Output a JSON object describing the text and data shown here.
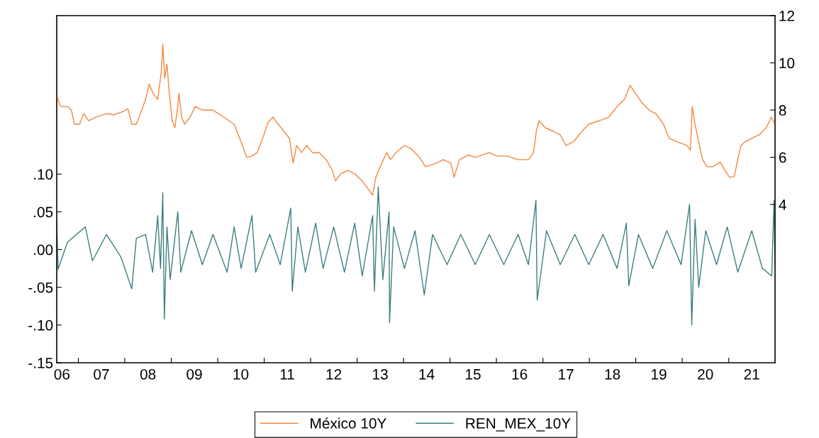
{
  "chart_data": {
    "type": "line",
    "legend": "bottom",
    "grid": false,
    "xlim": [
      "2006-07-15",
      "2021-12-31"
    ],
    "xticks": [
      {
        "value": "2006-08-25",
        "label": "06"
      },
      {
        "value": "2007-01-01",
        "label": null
      },
      {
        "value": "2007-07-01",
        "label": "07"
      },
      {
        "value": "2008-01-01",
        "label": null
      },
      {
        "value": "2008-07-01",
        "label": "08"
      },
      {
        "value": "2009-01-01",
        "label": null
      },
      {
        "value": "2009-07-01",
        "label": "09"
      },
      {
        "value": "2010-01-01",
        "label": null
      },
      {
        "value": "2010-07-01",
        "label": "10"
      },
      {
        "value": "2011-01-01",
        "label": null
      },
      {
        "value": "2011-07-01",
        "label": "11"
      },
      {
        "value": "2012-01-01",
        "label": null
      },
      {
        "value": "2012-07-01",
        "label": "12"
      },
      {
        "value": "2013-01-01",
        "label": null
      },
      {
        "value": "2013-07-01",
        "label": "13"
      },
      {
        "value": "2014-01-01",
        "label": null
      },
      {
        "value": "2014-07-01",
        "label": "14"
      },
      {
        "value": "2015-01-01",
        "label": null
      },
      {
        "value": "2015-07-01",
        "label": "15"
      },
      {
        "value": "2016-01-01",
        "label": null
      },
      {
        "value": "2016-07-01",
        "label": "16"
      },
      {
        "value": "2017-01-01",
        "label": null
      },
      {
        "value": "2017-07-01",
        "label": "17"
      },
      {
        "value": "2018-01-01",
        "label": null
      },
      {
        "value": "2018-07-01",
        "label": "18"
      },
      {
        "value": "2019-01-01",
        "label": null
      },
      {
        "value": "2019-07-01",
        "label": "19"
      },
      {
        "value": "2020-01-01",
        "label": null
      },
      {
        "value": "2020-07-01",
        "label": "20"
      },
      {
        "value": "2021-01-01",
        "label": null
      },
      {
        "value": "2021-07-01",
        "label": "21"
      }
    ],
    "ylim": [
      -0.15,
      0.31
    ],
    "yticks": [
      {
        "value": -0.15,
        "label": "-.15"
      },
      {
        "value": -0.1,
        "label": "-.10"
      },
      {
        "value": -0.05,
        "label": "-.05"
      },
      {
        "value": 0,
        "label": ".00"
      },
      {
        "value": 0.05,
        "label": ".05"
      },
      {
        "value": 0.1,
        "label": ".10"
      }
    ],
    "y2lim": [
      -2.7,
      12
    ],
    "y2ticks": [
      4,
      6,
      8,
      10,
      12
    ],
    "series": [
      {
        "name": "México 10Y",
        "color": "#f5873d",
        "axis": "y2",
        "x": [
          "2006-07-15",
          "2006-08-14",
          "2006-10-08",
          "2006-11-07",
          "2006-12-02",
          "2007-01-11",
          "2007-02-14",
          "2007-03-23",
          "2007-05-17",
          "2007-08-10",
          "2007-10-04",
          "2007-12-02",
          "2008-01-26",
          "2008-02-25",
          "2008-04-01",
          "2008-05-03",
          "2008-06-13",
          "2008-07-11",
          "2008-08-07",
          "2008-09-16",
          "2008-10-15",
          "2008-10-26",
          "2008-11-10",
          "2008-11-28",
          "2008-12-13",
          "2009-01-08",
          "2009-01-29",
          "2009-02-21",
          "2009-03-02",
          "2009-03-23",
          "2009-04-15",
          "2009-05-28",
          "2009-07-08",
          "2009-09-02",
          "2009-11-25",
          "2010-02-17",
          "2010-05-10",
          "2010-07-04",
          "2010-08-17",
          "2010-09-27",
          "2010-11-07",
          "2010-12-20",
          "2011-02-03",
          "2011-03-13",
          "2011-04-22",
          "2011-06-05",
          "2011-07-19",
          "2011-08-17",
          "2011-09-13",
          "2011-10-22",
          "2011-12-02",
          "2012-01-15",
          "2012-03-09",
          "2012-05-03",
          "2012-06-20",
          "2012-07-15",
          "2012-08-25",
          "2012-10-19",
          "2012-12-13",
          "2013-02-10",
          "2013-03-23",
          "2013-05-03",
          "2013-05-28",
          "2013-07-01",
          "2013-08-21",
          "2013-09-20",
          "2013-11-03",
          "2014-01-08",
          "2014-03-05",
          "2014-04-29",
          "2014-06-23",
          "2014-09-16",
          "2014-11-10",
          "2015-01-08",
          "2015-02-03",
          "2015-03-16",
          "2015-05-25",
          "2015-07-19",
          "2015-11-07",
          "2016-01-04",
          "2016-03-27",
          "2016-06-20",
          "2016-09-09",
          "2016-10-19",
          "2016-11-10",
          "2016-12-02",
          "2017-01-19",
          "2017-03-23",
          "2017-05-17",
          "2017-07-01",
          "2017-08-28",
          "2017-11-03",
          "2017-12-27",
          "2018-03-20",
          "2018-06-02",
          "2018-08-07",
          "2018-10-04",
          "2018-11-17",
          "2018-12-23",
          "2019-02-21",
          "2019-04-15",
          "2019-06-09",
          "2019-08-07",
          "2019-09-20",
          "2019-11-25",
          "2020-02-07",
          "2020-03-05",
          "2020-03-20",
          "2020-04-11",
          "2020-05-10",
          "2020-06-09",
          "2020-07-15",
          "2020-08-28",
          "2020-10-26",
          "2020-12-02",
          "2021-01-08",
          "2021-02-14",
          "2021-03-13",
          "2021-04-08",
          "2021-05-07",
          "2021-07-01",
          "2021-08-28",
          "2021-10-22",
          "2021-12-02",
          "2021-12-31"
        ],
        "values": [
          8.6,
          8.15,
          8.15,
          8.0,
          7.4,
          7.4,
          7.85,
          7.55,
          7.7,
          7.85,
          7.8,
          7.9,
          8.05,
          7.4,
          7.4,
          7.85,
          8.45,
          9.1,
          8.75,
          8.45,
          9.65,
          10.8,
          9.35,
          9.95,
          8.9,
          7.55,
          7.25,
          8.15,
          8.7,
          7.7,
          7.4,
          7.7,
          8.15,
          8.0,
          8.0,
          7.7,
          7.4,
          6.65,
          6.0,
          6.05,
          6.2,
          6.8,
          7.5,
          7.7,
          7.4,
          7.1,
          6.8,
          5.75,
          6.5,
          6.2,
          6.5,
          6.2,
          6.2,
          5.9,
          5.45,
          5.0,
          5.3,
          5.45,
          5.3,
          5.0,
          4.7,
          4.4,
          5.15,
          5.6,
          6.2,
          5.9,
          6.2,
          6.5,
          6.35,
          6.05,
          5.6,
          5.75,
          5.9,
          5.75,
          5.15,
          5.9,
          6.1,
          6.0,
          6.2,
          6.05,
          6.05,
          5.9,
          5.9,
          6.2,
          7.1,
          7.55,
          7.25,
          7.1,
          6.95,
          6.5,
          6.65,
          7.1,
          7.4,
          7.55,
          7.7,
          8.15,
          8.45,
          9.05,
          8.75,
          8.3,
          8.0,
          7.85,
          7.4,
          6.8,
          6.65,
          6.5,
          6.3,
          8.15,
          7.4,
          6.65,
          5.9,
          5.6,
          5.6,
          5.8,
          5.45,
          5.15,
          5.2,
          5.9,
          6.5,
          6.65,
          6.8,
          6.95,
          7.25,
          7.7,
          7.4
        ]
      },
      {
        "name": "REN_MEX_10Y",
        "color": "#3c7f7e",
        "axis": "y",
        "x": [
          "2006-07-15",
          "2006-07-26",
          "2006-10-08",
          "2007-02-25",
          "2007-04-22",
          "2007-08-10",
          "2007-12-02",
          "2008-02-25",
          "2008-04-01",
          "2008-06-13",
          "2008-08-07",
          "2008-09-16",
          "2008-10-08",
          "2008-10-26",
          "2008-11-07",
          "2008-11-28",
          "2008-12-23",
          "2009-02-21",
          "2009-03-16",
          "2009-06-09",
          "2009-09-02",
          "2009-11-25",
          "2010-03-16",
          "2010-05-10",
          "2010-07-04",
          "2010-09-27",
          "2010-10-26",
          "2011-02-14",
          "2011-05-07",
          "2011-07-29",
          "2011-08-10",
          "2011-09-23",
          "2011-11-21",
          "2012-02-10",
          "2012-04-08",
          "2012-07-01",
          "2012-09-23",
          "2012-12-13",
          "2013-02-10",
          "2013-05-03",
          "2013-05-17",
          "2013-06-16",
          "2013-07-22",
          "2013-09-09",
          "2013-09-13",
          "2013-10-15",
          "2014-01-08",
          "2014-04-01",
          "2014-06-13",
          "2014-08-17",
          "2014-12-09",
          "2015-03-27",
          "2015-07-19",
          "2015-11-07",
          "2016-02-28",
          "2016-06-20",
          "2016-09-09",
          "2016-11-07",
          "2016-11-17",
          "2017-01-29",
          "2017-05-17",
          "2017-09-09",
          "2017-12-27",
          "2018-04-19",
          "2018-08-07",
          "2018-10-19",
          "2018-11-07",
          "2019-01-22",
          "2019-05-14",
          "2019-09-02",
          "2019-12-23",
          "2020-02-28",
          "2020-03-16",
          "2020-04-11",
          "2020-05-10",
          "2020-07-04",
          "2020-09-27",
          "2020-12-20",
          "2021-03-13",
          "2021-07-01",
          "2021-09-23",
          "2021-12-05",
          "2021-12-23",
          "2021-12-31"
        ],
        "values": [
          0.038,
          -0.026,
          0.01,
          0.03,
          -0.015,
          0.02,
          -0.01,
          -0.052,
          0.015,
          0.02,
          -0.03,
          0.045,
          -0.025,
          0.075,
          -0.092,
          0.03,
          -0.04,
          0.05,
          -0.03,
          0.025,
          -0.02,
          0.02,
          -0.03,
          0.03,
          -0.025,
          0.045,
          -0.03,
          0.02,
          -0.02,
          0.055,
          -0.055,
          0.03,
          -0.03,
          0.035,
          -0.025,
          0.03,
          -0.03,
          0.035,
          -0.035,
          0.045,
          -0.055,
          0.083,
          -0.04,
          0.05,
          -0.097,
          0.03,
          -0.025,
          0.025,
          -0.06,
          0.02,
          -0.02,
          0.02,
          -0.02,
          0.02,
          -0.02,
          0.02,
          -0.02,
          0.065,
          -0.067,
          0.025,
          -0.02,
          0.02,
          -0.02,
          0.02,
          -0.025,
          0.035,
          -0.048,
          0.02,
          -0.025,
          0.025,
          -0.02,
          0.06,
          -0.1,
          0.04,
          -0.05,
          0.025,
          -0.02,
          0.03,
          -0.03,
          0.025,
          -0.025,
          -0.035,
          0.065,
          -0.02
        ]
      }
    ]
  }
}
